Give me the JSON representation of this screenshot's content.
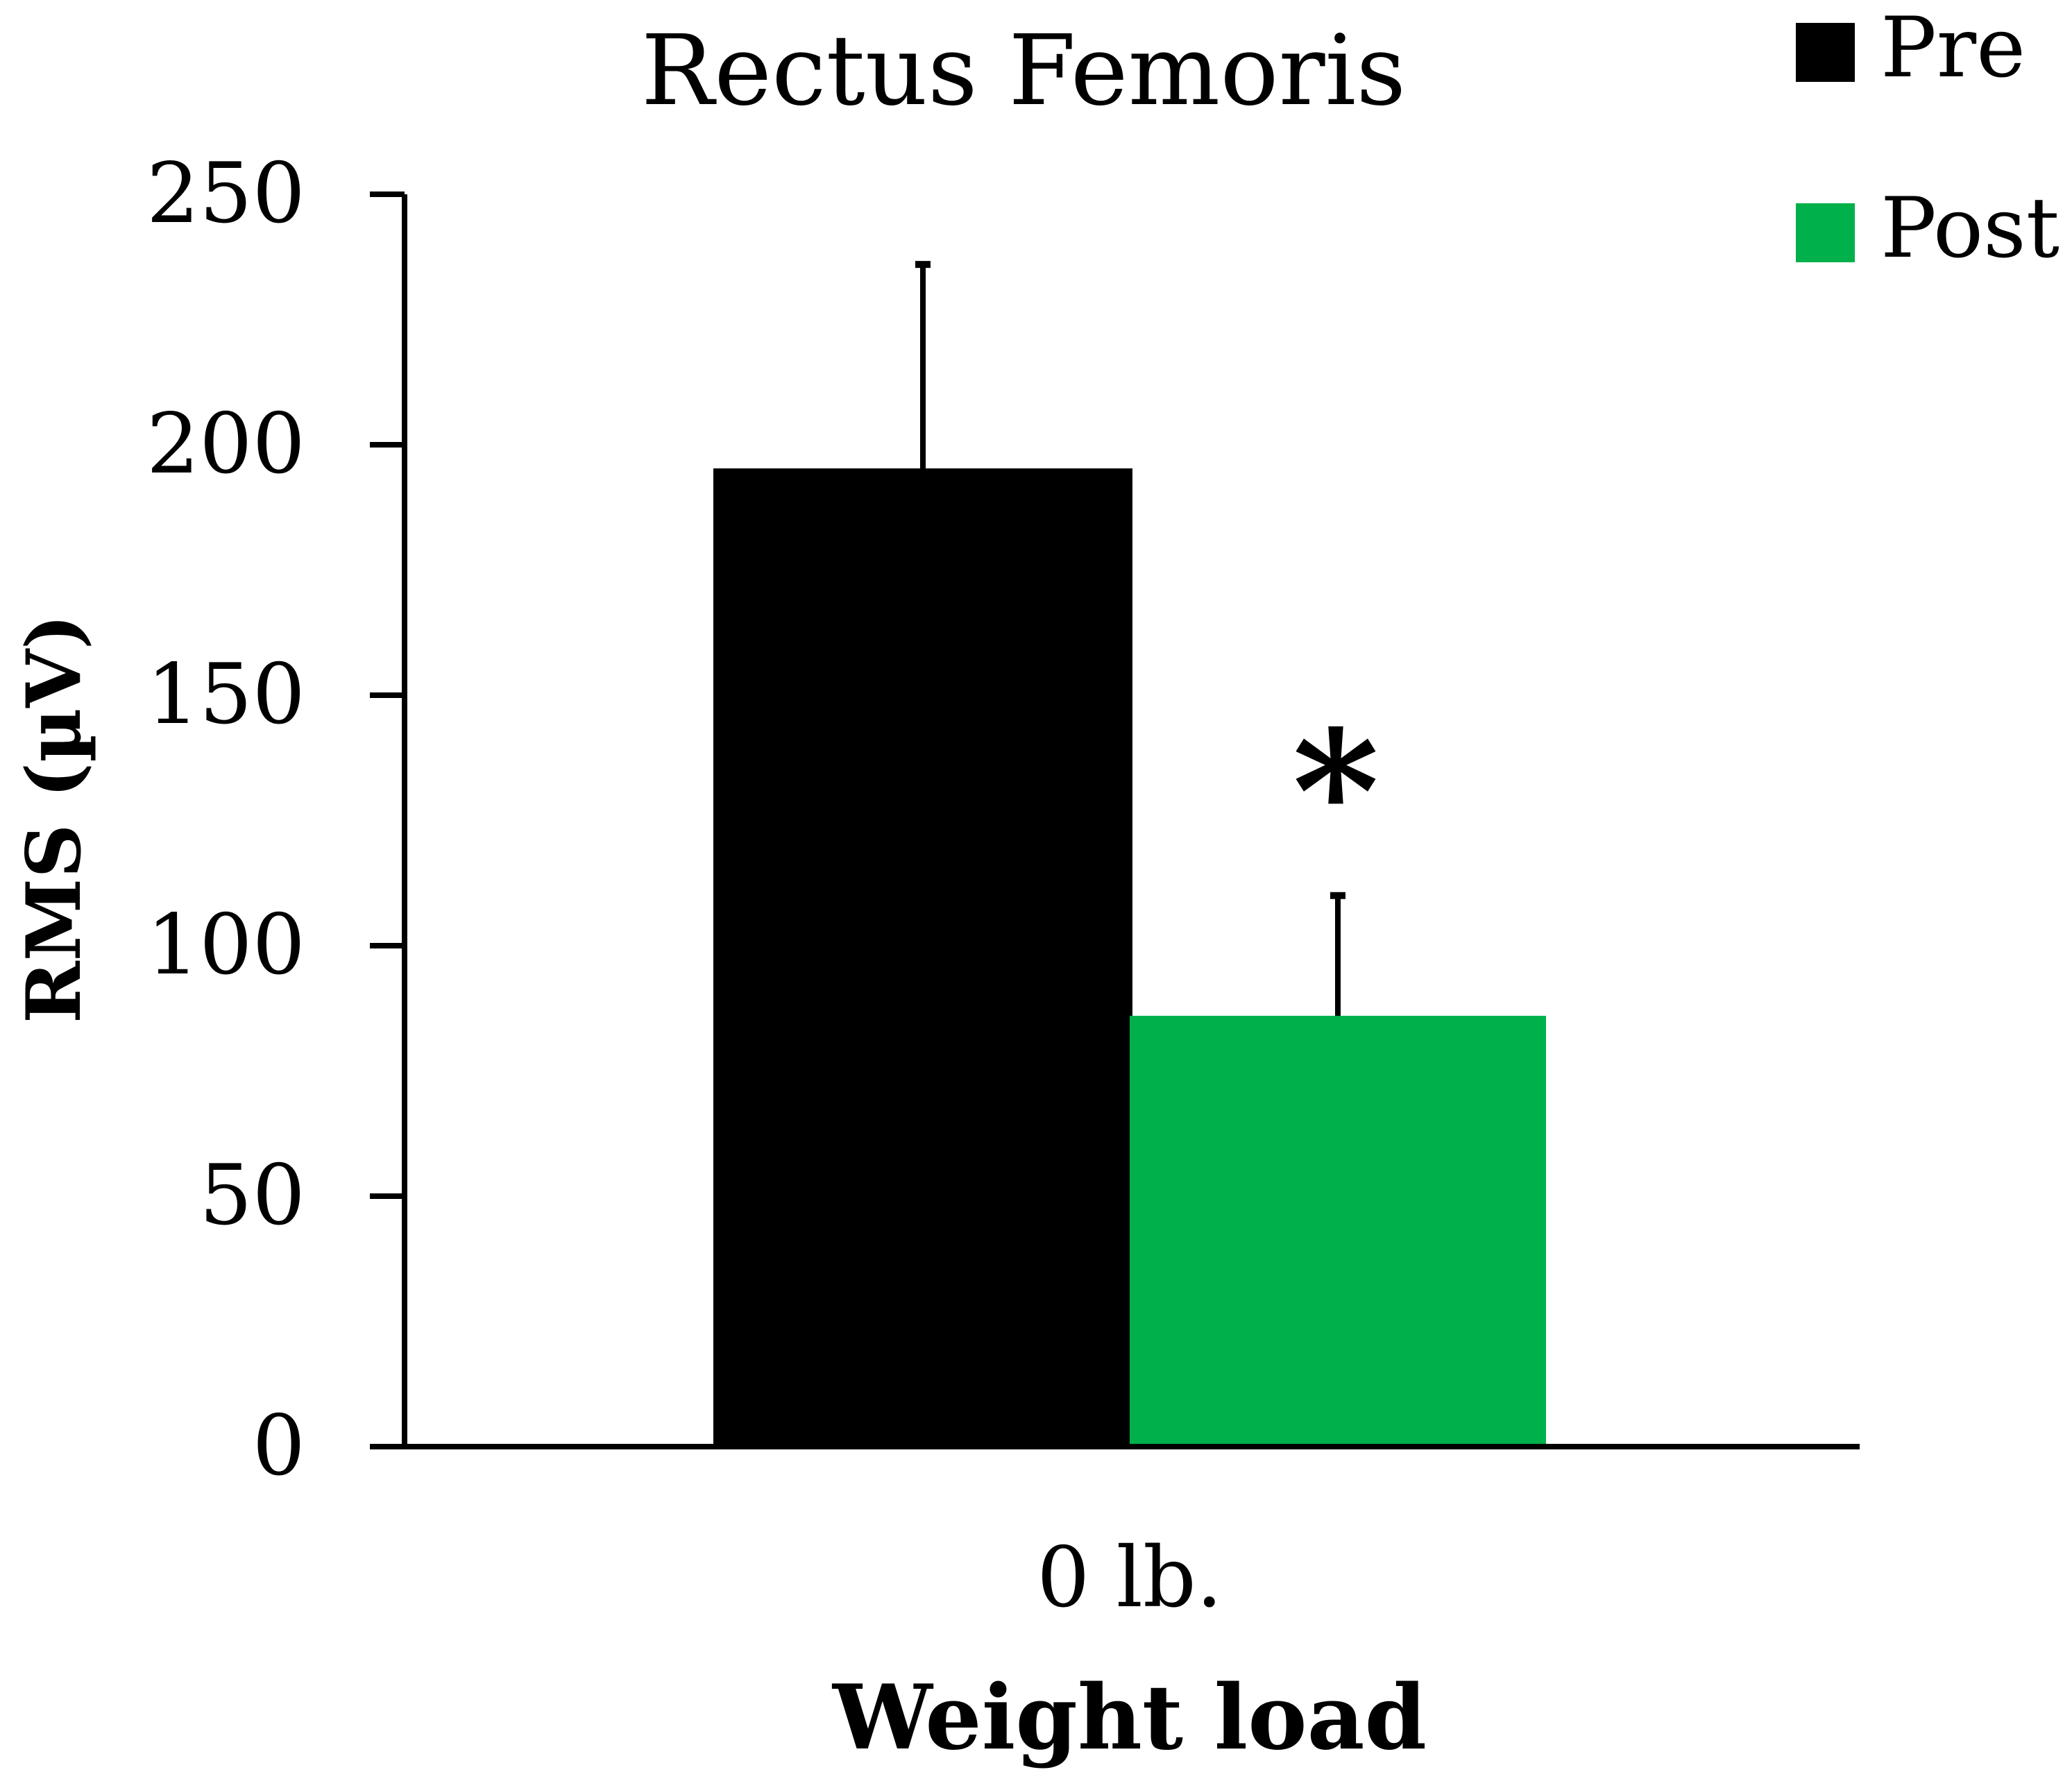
{
  "chart_data": {
    "type": "bar",
    "title": "Rectus Femoris",
    "xlabel": "Weight load",
    "ylabel": "RMS (µV)",
    "categories": [
      "0 lb."
    ],
    "ylim": [
      0,
      250
    ],
    "yticks": [
      "0",
      "50",
      "100",
      "150",
      "200",
      "250"
    ],
    "series": [
      {
        "name": "Pre",
        "values": [
          195
        ],
        "error": [
          41
        ],
        "color": "#000000"
      },
      {
        "name": "Post",
        "values": [
          86
        ],
        "error": [
          24
        ],
        "color": "#00b04a"
      }
    ],
    "annotations": [
      {
        "text": "*",
        "series": "Post",
        "category": "0 lb."
      }
    ],
    "legend": {
      "position": "top-right"
    },
    "grid": false
  }
}
